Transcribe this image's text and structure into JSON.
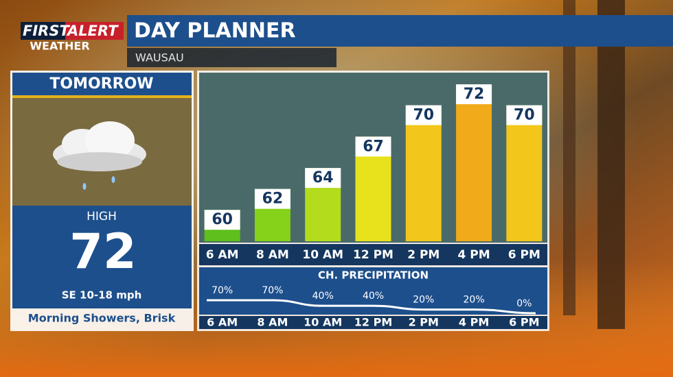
{
  "logo": {
    "first": "FIRST",
    "alert": "ALERT",
    "weather": "WEATHER"
  },
  "header": {
    "title": "DAY PLANNER",
    "location": "WAUSAU"
  },
  "forecast": {
    "day": "TOMORROW",
    "high_label": "HIGH",
    "high": 72,
    "wind": "SE 10-18 mph",
    "summary": "Morning Showers, Brisk"
  },
  "chart_data": [
    {
      "type": "bar",
      "categories": [
        "6 AM",
        "8 AM",
        "10 AM",
        "12 PM",
        "2 PM",
        "4 PM",
        "6 PM"
      ],
      "values": [
        60,
        62,
        64,
        67,
        70,
        72,
        70
      ],
      "colors": [
        "#5fbf1c",
        "#86d11a",
        "#b3dc1d",
        "#e8e21c",
        "#f2c61b",
        "#f0aa1a",
        "#f2c61b"
      ],
      "ylim": [
        57,
        72
      ]
    },
    {
      "type": "line",
      "title": "CH. PRECIPITATION",
      "categories": [
        "6 AM",
        "8 AM",
        "10 AM",
        "12 PM",
        "2 PM",
        "4 PM",
        "6 PM"
      ],
      "values": [
        70,
        70,
        40,
        40,
        20,
        20,
        0
      ],
      "value_labels": [
        "70%",
        "70%",
        "40%",
        "40%",
        "20%",
        "20%",
        "0%"
      ],
      "color": "#ffffff",
      "ylim": [
        0,
        70
      ]
    }
  ]
}
